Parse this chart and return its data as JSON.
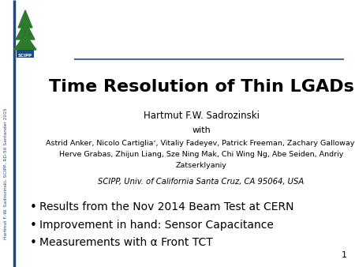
{
  "title": "Time Resolution of Thin LGADs",
  "author": "Hartmut F.W. Sadrozinski",
  "with_label": "with",
  "collaborators_line1": "Astrid Anker, Nicolo Cartigliaʼ, Vitaliy Fadeyev, Patrick Freeman, Zachary Galloway,",
  "collaborators_line2": "Herve Grabas, Zhijun Liang, Sze Ning Mak, Chi Wing Ng, Abe Seiden, Andriy",
  "collaborators_line3": "Zatserklyaniy",
  "institution": "SCIPP, Univ. of California Santa Cruz, CA 95064, USA",
  "bullets": [
    "Results from the Nov 2014 Beam Test at CERN",
    "Improvement in hand: Sensor Capacitance",
    "Measurements with α Front TCT"
  ],
  "sidebar_text": "Hartmut F.-W. Sadrozinski, SCIPP, RD-50 Santander 2015",
  "page_number": "1",
  "background_color": "#ffffff",
  "title_color": "#000000",
  "text_color": "#000000",
  "sidebar_color": "#1a4a8a",
  "line_color": "#4a6a9a",
  "tree_green": "#2d7a2d",
  "scipp_label_color": "#1a4a8a"
}
